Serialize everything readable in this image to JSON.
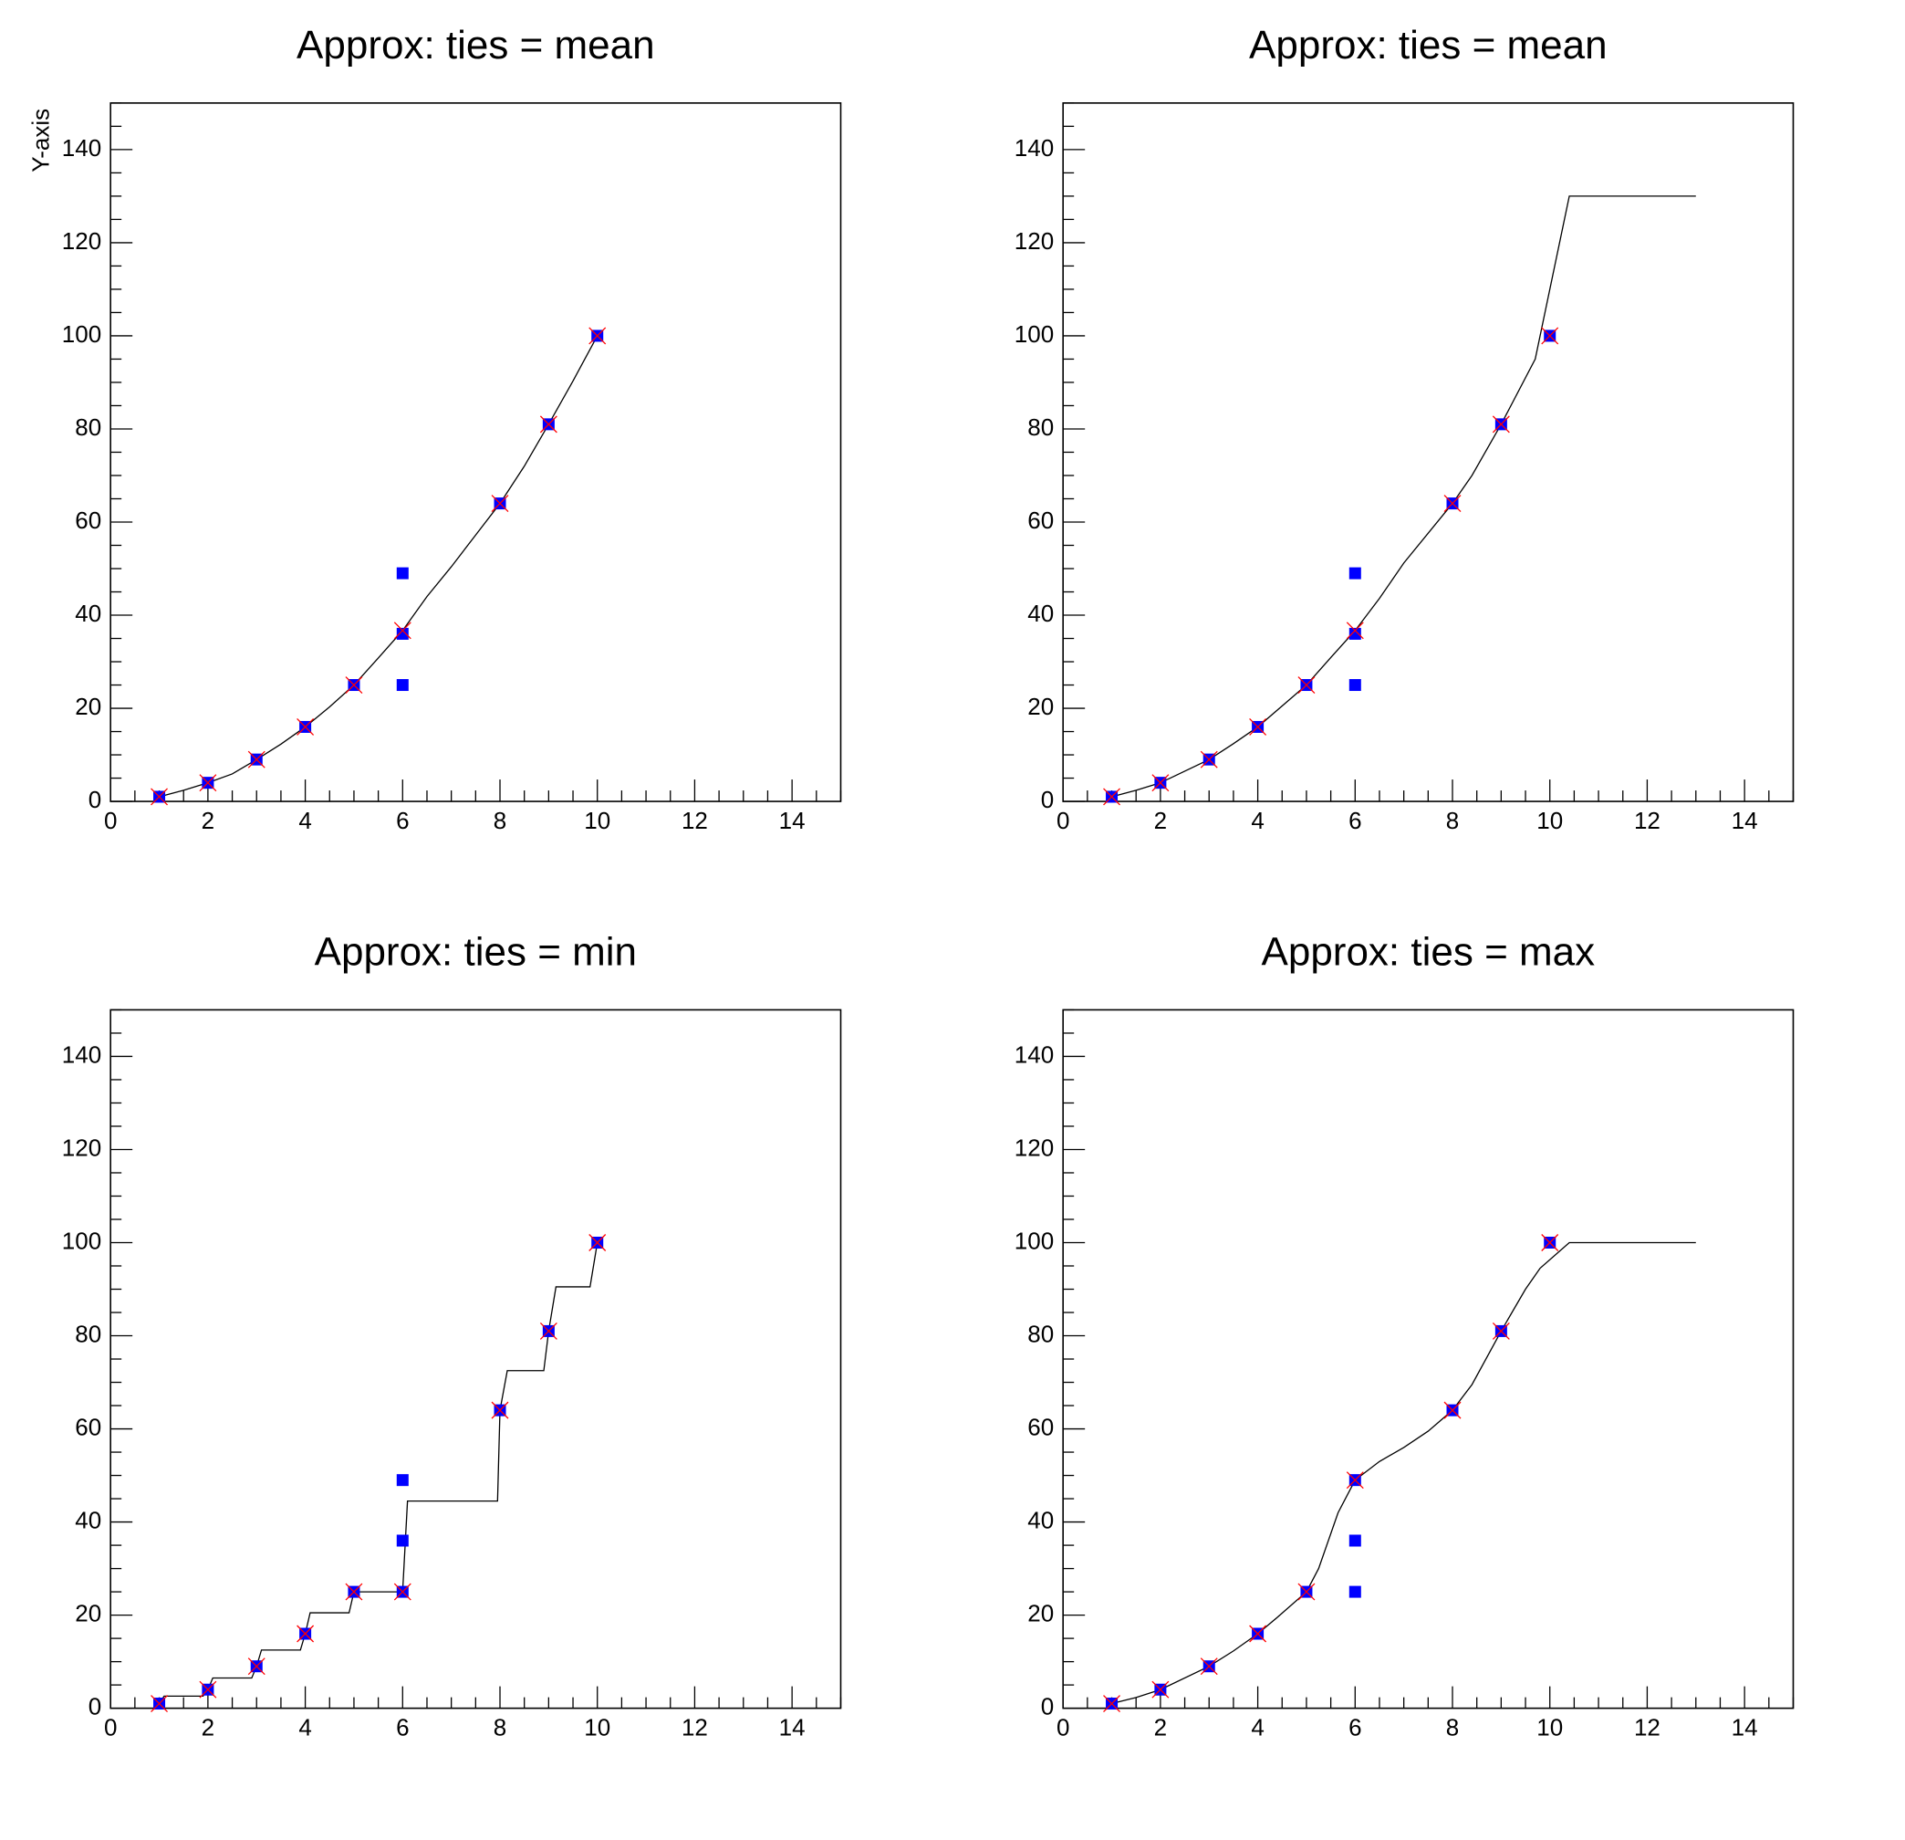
{
  "chart_data": [
    {
      "type": "scatter",
      "title": "Approx: ties = mean",
      "ylabel": "Y-axis",
      "xlim": [
        0,
        15
      ],
      "ylim": [
        0,
        150
      ],
      "xticks": [
        "0",
        "2",
        "4",
        "6",
        "8",
        "10",
        "12",
        "14"
      ],
      "yticks": [
        "0",
        "20",
        "40",
        "60",
        "80",
        "100",
        "120",
        "140"
      ],
      "series": [
        {
          "points": [
            [
              1,
              1
            ],
            [
              2,
              4
            ],
            [
              3,
              9
            ],
            [
              4,
              16
            ],
            [
              5,
              25
            ],
            [
              6,
              25
            ],
            [
              6,
              36
            ],
            [
              6,
              49
            ],
            [
              8,
              64
            ],
            [
              9,
              81
            ],
            [
              10,
              100
            ]
          ],
          "color": "#0000ff",
          "marker": "square"
        },
        {
          "points": [
            [
              1,
              1
            ],
            [
              2,
              4
            ],
            [
              3,
              9
            ],
            [
              4,
              16
            ],
            [
              5,
              25
            ],
            [
              6,
              36.7
            ],
            [
              8,
              64
            ],
            [
              9,
              81
            ],
            [
              10,
              100
            ]
          ],
          "color": "#ff0000",
          "marker": "x"
        },
        {
          "points": [
            [
              1,
              1
            ],
            [
              1.5,
              2.4
            ],
            [
              2,
              4
            ],
            [
              2.5,
              5.9
            ],
            [
              3,
              9
            ],
            [
              3.5,
              12.3
            ],
            [
              4,
              16
            ],
            [
              4.5,
              20.3
            ],
            [
              5,
              25
            ],
            [
              5.5,
              30.8
            ],
            [
              6,
              36.7
            ],
            [
              6.5,
              44
            ],
            [
              7,
              50.4
            ],
            [
              7.5,
              57.2
            ],
            [
              8,
              64
            ],
            [
              8.5,
              72
            ],
            [
              9,
              81
            ],
            [
              9.5,
              90.3
            ],
            [
              10,
              100
            ]
          ],
          "color": "#000000",
          "marker": "line"
        }
      ]
    },
    {
      "type": "scatter",
      "title": "Approx: ties = mean",
      "ylabel": "",
      "xlim": [
        0,
        15
      ],
      "ylim": [
        0,
        150
      ],
      "xticks": [
        "0",
        "2",
        "4",
        "6",
        "8",
        "10",
        "12",
        "14"
      ],
      "yticks": [
        "0",
        "20",
        "40",
        "60",
        "80",
        "100",
        "120",
        "140"
      ],
      "series": [
        {
          "points": [
            [
              1,
              1
            ],
            [
              2,
              4
            ],
            [
              3,
              9
            ],
            [
              4,
              16
            ],
            [
              5,
              25
            ],
            [
              6,
              25
            ],
            [
              6,
              36
            ],
            [
              6,
              49
            ],
            [
              8,
              64
            ],
            [
              9,
              81
            ],
            [
              10,
              100
            ]
          ],
          "color": "#0000ff",
          "marker": "square"
        },
        {
          "points": [
            [
              1,
              1
            ],
            [
              2,
              4
            ],
            [
              3,
              9
            ],
            [
              4,
              16
            ],
            [
              5,
              25
            ],
            [
              6,
              36.7
            ],
            [
              8,
              64
            ],
            [
              9,
              81
            ],
            [
              10,
              100
            ]
          ],
          "color": "#ff0000",
          "marker": "x"
        },
        {
          "points": [
            [
              1,
              1
            ],
            [
              1.5,
              2.4
            ],
            [
              2,
              4
            ],
            [
              3,
              9
            ],
            [
              3.5,
              12.4
            ],
            [
              4,
              16
            ],
            [
              5,
              25
            ],
            [
              5.5,
              30.9
            ],
            [
              6,
              36.7
            ],
            [
              6.5,
              43.6
            ],
            [
              7,
              51.2
            ],
            [
              8,
              64
            ],
            [
              8.4,
              70
            ],
            [
              9,
              81
            ],
            [
              9.7,
              95
            ],
            [
              10.4,
              130
            ],
            [
              13,
              130
            ]
          ],
          "color": "#000000",
          "marker": "line"
        }
      ]
    },
    {
      "type": "scatter",
      "title": "Approx: ties = min",
      "ylabel": "",
      "xlim": [
        0,
        15
      ],
      "ylim": [
        0,
        150
      ],
      "xticks": [
        "0",
        "2",
        "4",
        "6",
        "8",
        "10",
        "12",
        "14"
      ],
      "yticks": [
        "0",
        "20",
        "40",
        "60",
        "80",
        "100",
        "120",
        "140"
      ],
      "series": [
        {
          "points": [
            [
              1,
              1
            ],
            [
              2,
              4
            ],
            [
              3,
              9
            ],
            [
              4,
              16
            ],
            [
              5,
              25
            ],
            [
              6,
              25
            ],
            [
              6,
              36
            ],
            [
              6,
              49
            ],
            [
              8,
              64
            ],
            [
              9,
              81
            ],
            [
              10,
              100
            ]
          ],
          "color": "#0000ff",
          "marker": "square"
        },
        {
          "points": [
            [
              1,
              1
            ],
            [
              2,
              4
            ],
            [
              3,
              9
            ],
            [
              4,
              16
            ],
            [
              5,
              25
            ],
            [
              6,
              25
            ],
            [
              8,
              64
            ],
            [
              9,
              81
            ],
            [
              10,
              100
            ]
          ],
          "color": "#ff0000",
          "marker": "x"
        },
        {
          "points": [
            [
              1,
              1
            ],
            [
              1.1,
              2.6
            ],
            [
              1.9,
              2.6
            ],
            [
              2,
              4
            ],
            [
              2.1,
              6.5
            ],
            [
              2.9,
              6.5
            ],
            [
              3,
              9
            ],
            [
              3.1,
              12.5
            ],
            [
              3.9,
              12.5
            ],
            [
              4,
              16
            ],
            [
              4.1,
              20.5
            ],
            [
              4.9,
              20.5
            ],
            [
              5,
              25
            ],
            [
              5.9,
              25
            ],
            [
              6,
              25
            ],
            [
              6.1,
              44.5
            ],
            [
              7.95,
              44.5
            ],
            [
              8,
              64
            ],
            [
              8.15,
              72.5
            ],
            [
              8.9,
              72.5
            ],
            [
              9,
              81
            ],
            [
              9.15,
              90.5
            ],
            [
              9.85,
              90.5
            ],
            [
              10,
              100
            ]
          ],
          "color": "#000000",
          "marker": "line"
        }
      ]
    },
    {
      "type": "scatter",
      "title": "Approx: ties = max",
      "ylabel": "",
      "xlim": [
        0,
        15
      ],
      "ylim": [
        0,
        150
      ],
      "xticks": [
        "0",
        "2",
        "4",
        "6",
        "8",
        "10",
        "12",
        "14"
      ],
      "yticks": [
        "0",
        "20",
        "40",
        "60",
        "80",
        "100",
        "120",
        "140"
      ],
      "series": [
        {
          "points": [
            [
              1,
              1
            ],
            [
              2,
              4
            ],
            [
              3,
              9
            ],
            [
              4,
              16
            ],
            [
              5,
              25
            ],
            [
              6,
              25
            ],
            [
              6,
              36
            ],
            [
              6,
              49
            ],
            [
              8,
              64
            ],
            [
              9,
              81
            ],
            [
              10,
              100
            ]
          ],
          "color": "#0000ff",
          "marker": "square"
        },
        {
          "points": [
            [
              1,
              1
            ],
            [
              2,
              4
            ],
            [
              3,
              9
            ],
            [
              4,
              16
            ],
            [
              5,
              25
            ],
            [
              6,
              49
            ],
            [
              8,
              64
            ],
            [
              9,
              81
            ],
            [
              10,
              100
            ]
          ],
          "color": "#ff0000",
          "marker": "x"
        },
        {
          "points": [
            [
              1,
              1
            ],
            [
              1.5,
              2.3
            ],
            [
              2,
              4
            ],
            [
              3,
              9
            ],
            [
              3.5,
              12.3
            ],
            [
              4,
              16
            ],
            [
              4.4,
              19.5
            ],
            [
              5,
              25
            ],
            [
              5.25,
              30
            ],
            [
              5.65,
              42
            ],
            [
              6,
              49
            ],
            [
              6.5,
              53
            ],
            [
              7,
              56
            ],
            [
              7.5,
              59.5
            ],
            [
              8,
              64
            ],
            [
              8.4,
              69.5
            ],
            [
              9,
              81
            ],
            [
              9.5,
              90
            ],
            [
              9.8,
              94.5
            ],
            [
              10.4,
              100
            ],
            [
              13,
              100
            ]
          ],
          "color": "#000000",
          "marker": "line"
        }
      ]
    }
  ]
}
